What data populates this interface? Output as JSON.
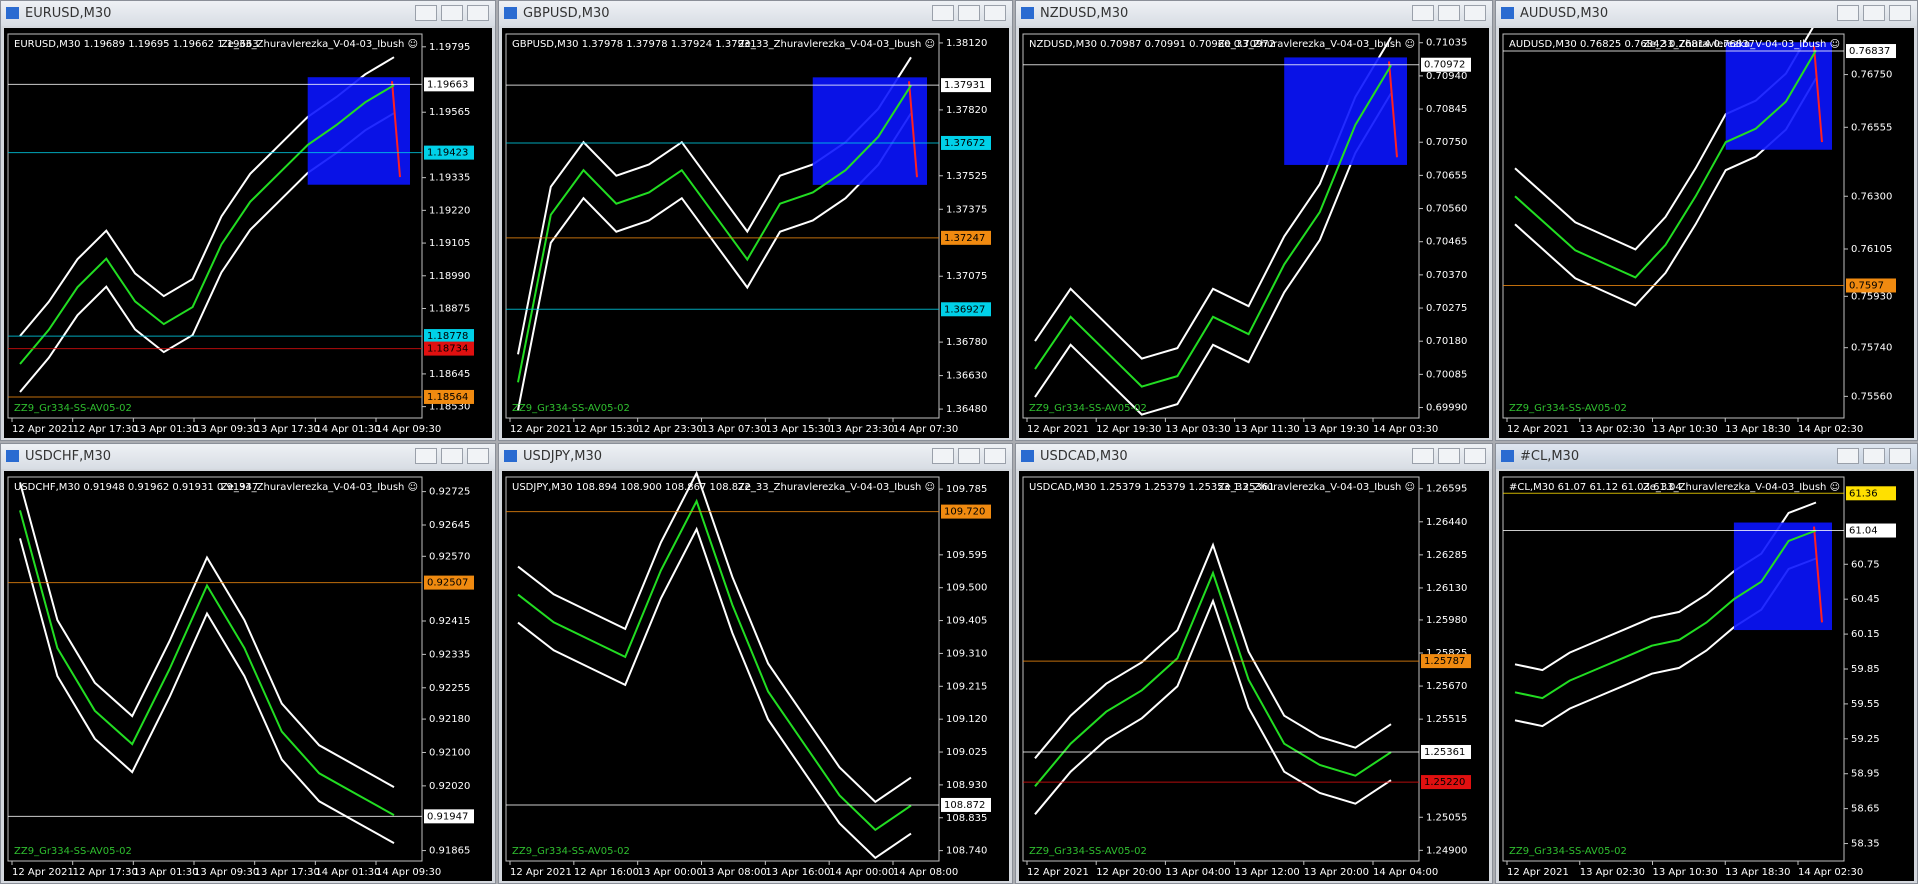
{
  "windows": [
    {
      "title": "EURUSD,M30",
      "header": "EURUSD,M30  1.19689 1.19695 1.19662 1.19663",
      "indicator": "Ze_33_Zhuravlerezka_V-04-03_Ibush ☺",
      "footer": "ZZ9_Gr334-SS-AV05-02",
      "ylim": [
        1.1849,
        1.1984
      ],
      "price_axis": [
        "1.19795",
        "1.19565",
        "1.19335",
        "1.19220",
        "1.19105",
        "1.18990",
        "1.18875",
        "1.18645",
        "1.18530"
      ],
      "price_marks": [
        {
          "label": "1.19663",
          "color": "white"
        },
        {
          "label": "1.19423",
          "color": "cyan"
        },
        {
          "label": "1.18778",
          "color": "cyan"
        },
        {
          "label": "1.18734",
          "color": "red"
        },
        {
          "label": "1.18564",
          "color": "orange"
        }
      ],
      "time_axis": [
        "12 Apr 2021",
        "12 Apr 17:30",
        "13 Apr 01:30",
        "13 Apr 09:30",
        "13 Apr 17:30",
        "14 Apr 01:30",
        "14 Apr 09:30"
      ],
      "price": [
        1.1868,
        1.188,
        1.1895,
        1.1905,
        1.189,
        1.1882,
        1.1888,
        1.191,
        1.1925,
        1.1935,
        1.1945,
        1.1952,
        1.196,
        1.1966
      ]
    },
    {
      "title": "GBPUSD,M30",
      "header": "GBPUSD,M30  1.37978 1.37978 1.37924 1.37931",
      "indicator": "Ze_33_Zhuravlerezka_V-04-03_Ibush ☺",
      "footer": "ZZ9_Gr334-SS-AV05-02",
      "ylim": [
        1.3644,
        1.3816
      ],
      "price_axis": [
        "1.38120",
        "1.37820",
        "1.37525",
        "1.37375",
        "1.37075",
        "1.36780",
        "1.36630",
        "1.36480"
      ],
      "price_marks": [
        {
          "label": "1.37931",
          "color": "white"
        },
        {
          "label": "1.37672",
          "color": "cyan"
        },
        {
          "label": "1.37247",
          "color": "orange"
        },
        {
          "label": "1.36927",
          "color": "cyan"
        }
      ],
      "time_axis": [
        "12 Apr 2021",
        "12 Apr 15:30",
        "12 Apr 23:30",
        "13 Apr 07:30",
        "13 Apr 15:30",
        "13 Apr 23:30",
        "14 Apr 07:30"
      ],
      "price": [
        1.366,
        1.3735,
        1.3755,
        1.374,
        1.3745,
        1.3755,
        1.3735,
        1.3715,
        1.374,
        1.3745,
        1.3755,
        1.377,
        1.3793
      ]
    },
    {
      "title": "NZDUSD,M30",
      "header": "NZDUSD,M30  0.70987 0.70991 0.70960 0.70972",
      "indicator": "Ze_33_Zhuravlerezka_V-04-03_Ibush ☺",
      "footer": "ZZ9_Gr334-SS-AV05-02",
      "ylim": [
        0.6996,
        0.7106
      ],
      "price_axis": [
        "0.71035",
        "0.70940",
        "0.70845",
        "0.70750",
        "0.70655",
        "0.70560",
        "0.70465",
        "0.70370",
        "0.70275",
        "0.70180",
        "0.70085",
        "0.69990"
      ],
      "price_marks": [
        {
          "label": "0.70972",
          "color": "white"
        }
      ],
      "time_axis": [
        "12 Apr 2021",
        "12 Apr 19:30",
        "13 Apr 03:30",
        "13 Apr 11:30",
        "13 Apr 19:30",
        "14 Apr 03:30"
      ],
      "price": [
        0.701,
        0.7025,
        0.7015,
        0.7005,
        0.7008,
        0.7025,
        0.702,
        0.704,
        0.7055,
        0.708,
        0.7097
      ]
    },
    {
      "title": "AUDUSD,M30",
      "header": "AUDUSD,M30  0.76825 0.76842 0.76814 0.76837",
      "indicator": "Ze_33_Zhuravlerezka_V-04-03_Ibush ☺",
      "footer": "ZZ9_Gr334-SS-AV05-02",
      "ylim": [
        0.7548,
        0.769
      ],
      "price_axis": [
        "0.76750",
        "0.76555",
        "0.76300",
        "0.76105",
        "0.75930",
        "0.75740",
        "0.75560"
      ],
      "price_marks": [
        {
          "label": "0.76837",
          "color": "white"
        },
        {
          "label": "0.7597",
          "color": "orange"
        }
      ],
      "time_axis": [
        "12 Apr 2021",
        "13 Apr 02:30",
        "13 Apr 10:30",
        "13 Apr 18:30",
        "14 Apr 02:30"
      ],
      "price": [
        0.763,
        0.762,
        0.761,
        0.7605,
        0.76,
        0.7612,
        0.763,
        0.765,
        0.7655,
        0.7665,
        0.7684
      ]
    },
    {
      "title": "USDCHF,M30",
      "header": "USDCHF,M30  0.91948 0.91962 0.91931 0.91947",
      "indicator": "Ze_33_Zhuravlerezka_V-04-03_Ibush ☺",
      "footer": "ZZ9_Gr334-SS-AV05-02",
      "ylim": [
        0.9184,
        0.9276
      ],
      "price_axis": [
        "0.92725",
        "0.92645",
        "0.92570",
        "0.92415",
        "0.92335",
        "0.92255",
        "0.92180",
        "0.92100",
        "0.92020",
        "0.91865"
      ],
      "price_marks": [
        {
          "label": "0.92507",
          "color": "orange"
        },
        {
          "label": "0.91947",
          "color": "white"
        }
      ],
      "time_axis": [
        "12 Apr 2021",
        "12 Apr 17:30",
        "13 Apr 01:30",
        "13 Apr 09:30",
        "13 Apr 17:30",
        "14 Apr 01:30",
        "14 Apr 09:30"
      ],
      "price": [
        0.9268,
        0.9235,
        0.922,
        0.9212,
        0.923,
        0.925,
        0.9235,
        0.9215,
        0.9205,
        0.92,
        0.9195
      ]
    },
    {
      "title": "USDJPY,M30",
      "header": "USDJPY,M30  108.894 108.900 108.867 108.872",
      "indicator": "Ze_33_Zhuravlerezka_V-04-03_Ibush ☺",
      "footer": "ZZ9_Gr334-SS-AV05-02",
      "ylim": [
        108.71,
        109.82
      ],
      "price_axis": [
        "109.785",
        "109.595",
        "109.500",
        "109.405",
        "109.310",
        "109.215",
        "109.120",
        "109.025",
        "108.930",
        "108.835",
        "108.740"
      ],
      "price_marks": [
        {
          "label": "109.720",
          "color": "orange"
        },
        {
          "label": "108.872",
          "color": "white"
        }
      ],
      "time_axis": [
        "12 Apr 2021",
        "12 Apr 16:00",
        "13 Apr 00:00",
        "13 Apr 08:00",
        "13 Apr 16:00",
        "14 Apr 00:00",
        "14 Apr 08:00"
      ],
      "price": [
        109.48,
        109.4,
        109.35,
        109.3,
        109.55,
        109.75,
        109.45,
        109.2,
        109.05,
        108.9,
        108.8,
        108.87
      ]
    },
    {
      "title": "USDCAD,M30",
      "header": "USDCAD,M30  1.25379 1.25379 1.25353 1.25361",
      "indicator": "Ze_33_Zhuravlerezka_V-04-03_Ibush ☺",
      "footer": "ZZ9_Gr334-SS-AV05-02",
      "ylim": [
        1.2485,
        1.2665
      ],
      "price_axis": [
        "1.26595",
        "1.26440",
        "1.26285",
        "1.26130",
        "1.25980",
        "1.25825",
        "1.25670",
        "1.25515",
        "1.25055",
        "1.24900"
      ],
      "price_marks": [
        {
          "label": "1.25787",
          "color": "orange"
        },
        {
          "label": "1.25361",
          "color": "white"
        },
        {
          "label": "1.25220",
          "color": "red"
        }
      ],
      "time_axis": [
        "12 Apr 2021",
        "12 Apr 20:00",
        "13 Apr 04:00",
        "13 Apr 12:00",
        "13 Apr 20:00",
        "14 Apr 04:00"
      ],
      "price": [
        1.252,
        1.254,
        1.2555,
        1.2565,
        1.258,
        1.262,
        1.257,
        1.254,
        1.253,
        1.2525,
        1.2536
      ]
    },
    {
      "title": "#CL,M30",
      "header": "#CL,M30  61.07 61.12 61.03 61.04",
      "indicator": "Ze_33_Zhuravlerezka_V-04-03_Ibush ☺",
      "footer": "ZZ9_Gr334-SS-AV05-02",
      "ylim": [
        58.2,
        61.5
      ],
      "price_axis": [
        "60.75",
        "60.45",
        "60.15",
        "59.85",
        "59.55",
        "59.25",
        "58.95",
        "58.65",
        "58.35"
      ],
      "price_marks": [
        {
          "label": "61.36",
          "color": "yellow"
        },
        {
          "label": "61.04",
          "color": "white"
        }
      ],
      "time_axis": [
        "12 Apr 2021",
        "13 Apr 02:30",
        "13 Apr 10:30",
        "13 Apr 18:30",
        "14 Apr 02:30"
      ],
      "price": [
        59.65,
        59.6,
        59.75,
        59.85,
        59.95,
        60.05,
        60.1,
        60.25,
        60.45,
        60.6,
        60.95,
        61.04
      ]
    }
  ]
}
